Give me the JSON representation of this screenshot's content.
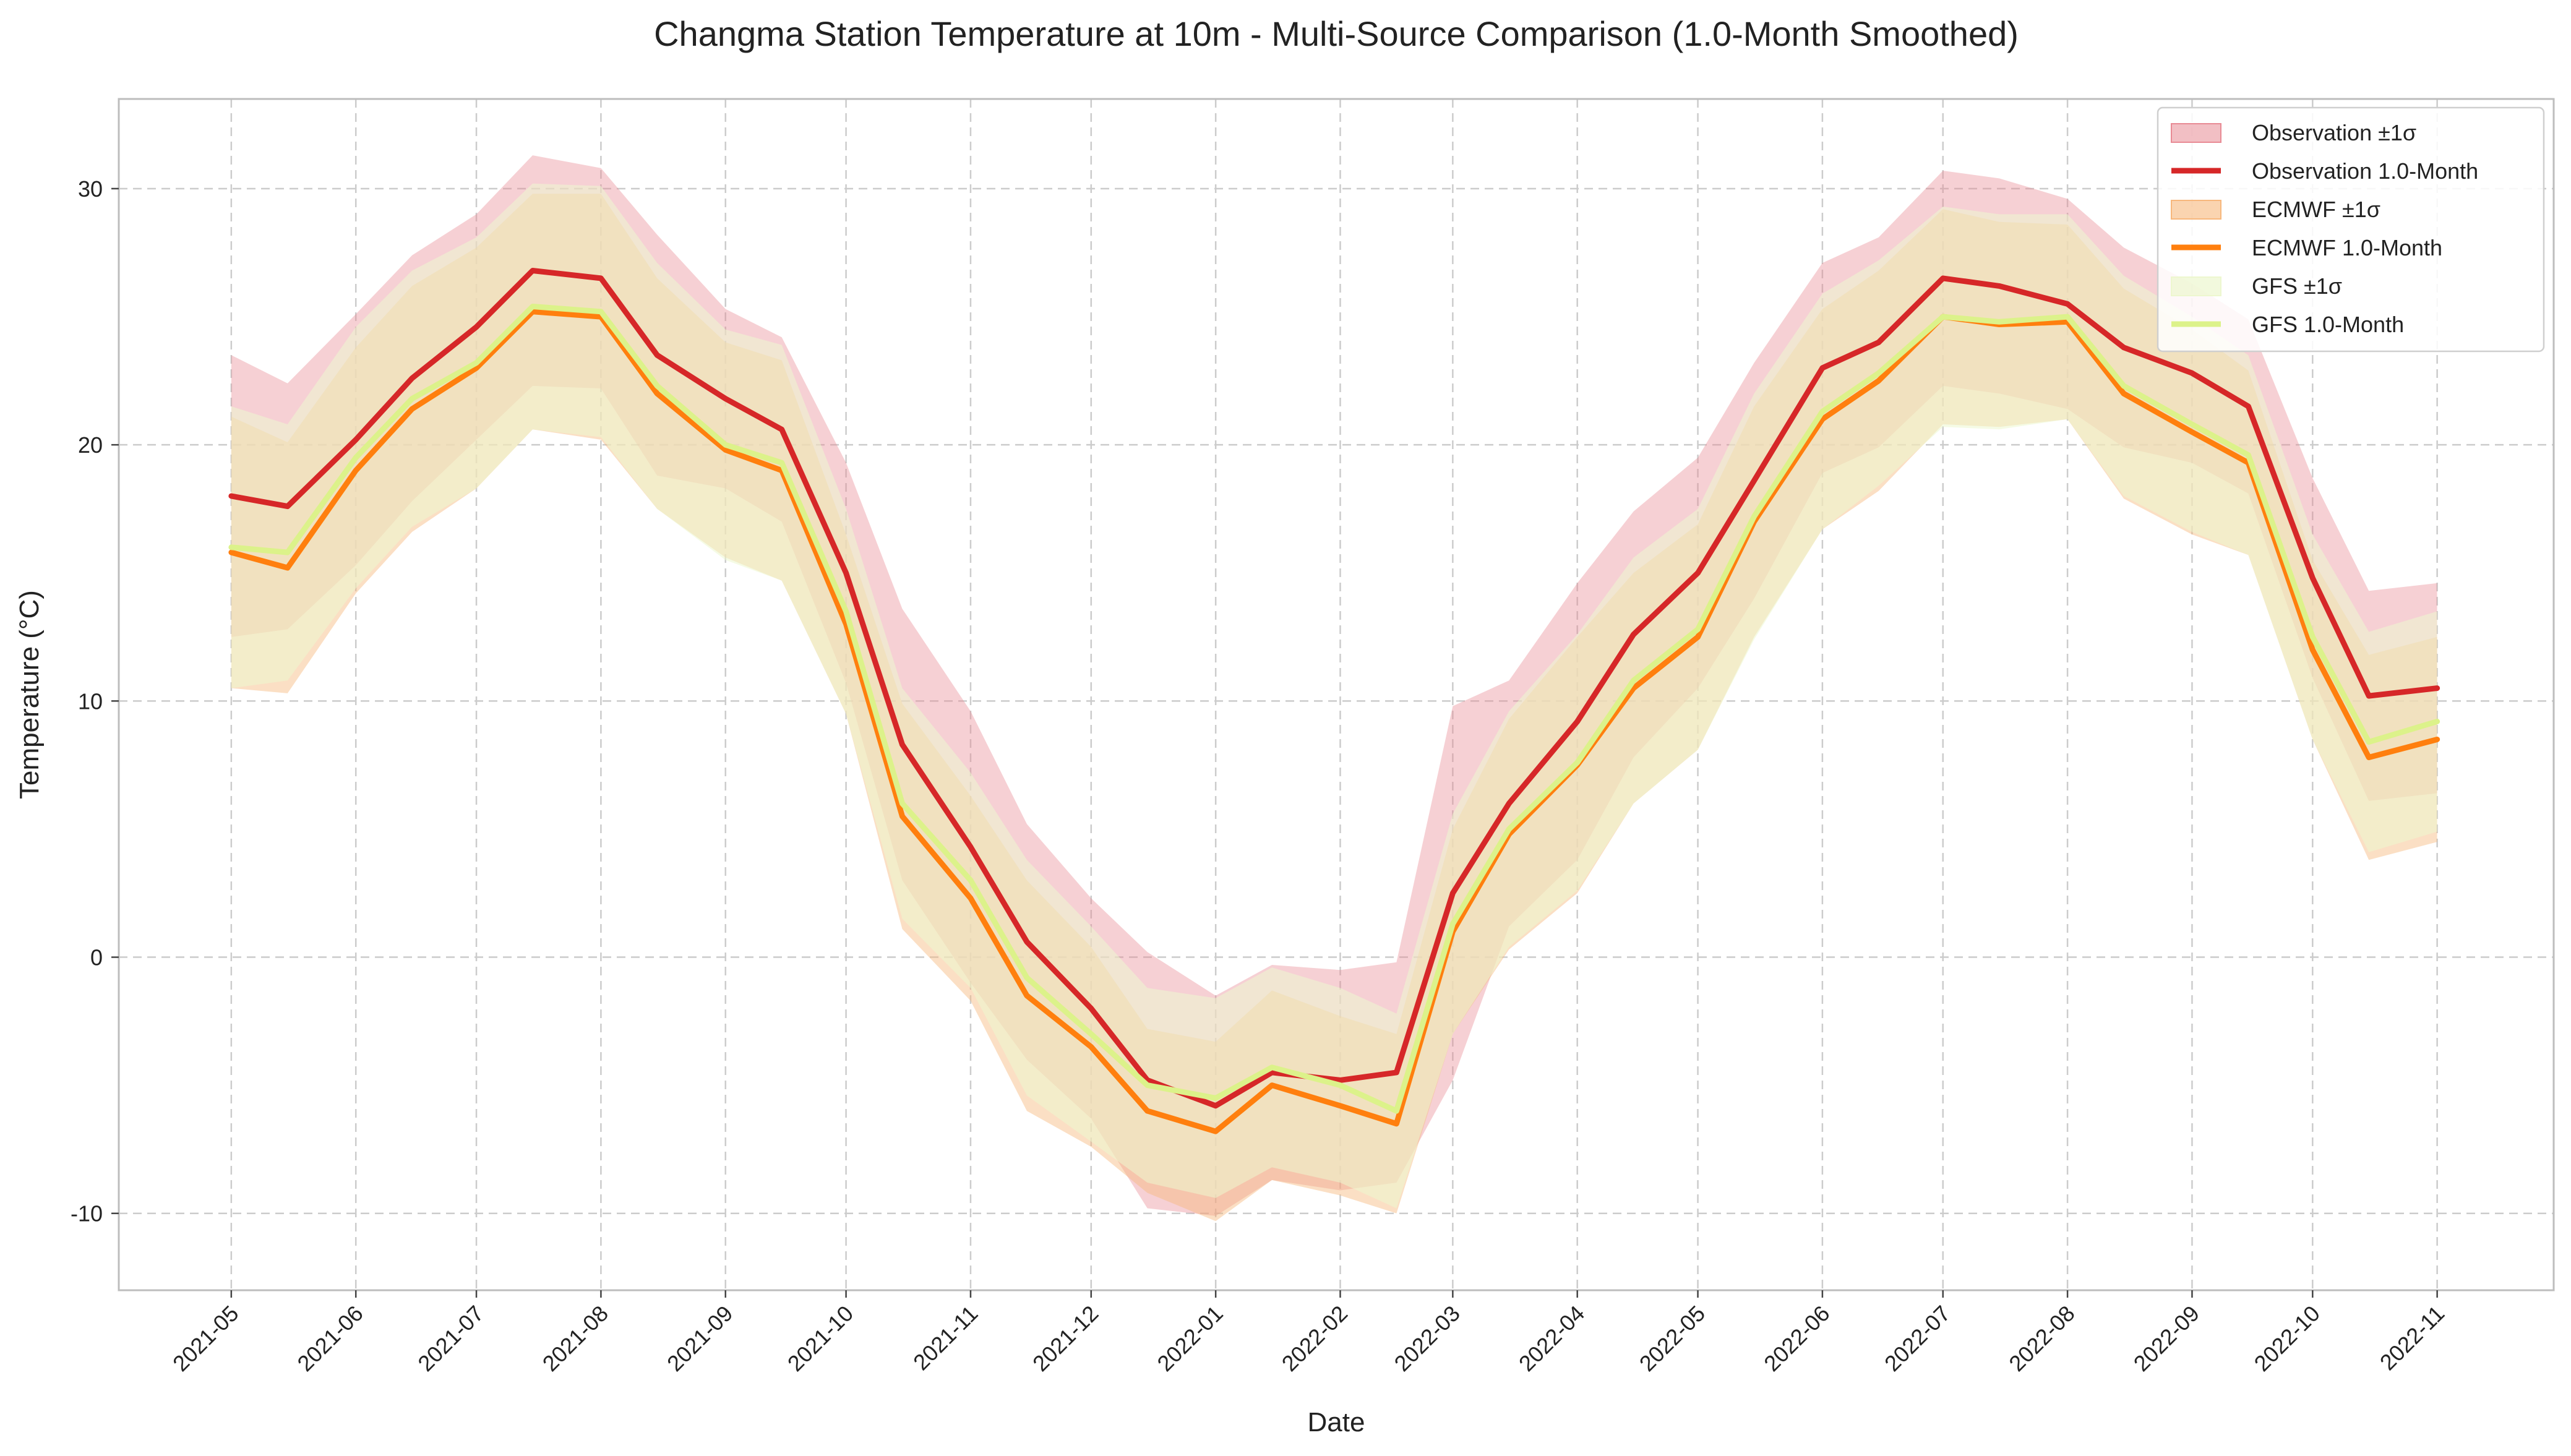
{
  "chart_data": {
    "type": "line",
    "title": "Changma Station Temperature at 10m - Multi-Source Comparison (1.0-Month Smoothed)",
    "xlabel": "Date",
    "ylabel": "Temperature (°C)",
    "x_ticks": [
      "2021-05",
      "2021-06",
      "2021-07",
      "2021-08",
      "2021-09",
      "2021-10",
      "2021-11",
      "2021-12",
      "2022-01",
      "2022-02",
      "2022-03",
      "2022-04",
      "2022-05",
      "2022-06",
      "2022-07",
      "2022-08",
      "2022-09",
      "2022-10",
      "2022-11"
    ],
    "y_ticks": [
      -10,
      0,
      10,
      20,
      30
    ],
    "xlim": [
      "2021-04-03",
      "2022-11-30"
    ],
    "ylim": [
      -13,
      33.5
    ],
    "grid": true,
    "legend_position": "top-right",
    "legend": [
      "Observation ±1σ",
      "Observation 1.0-Month",
      "ECMWF ±1σ",
      "ECMWF 1.0-Month",
      "GFS ±1σ",
      "GFS 1.0-Month"
    ],
    "series": [
      {
        "name": "Observation 1.0-Month",
        "band_name": "Observation ±1σ",
        "color": "#d62728",
        "band_color": "#e88a94",
        "x": [
          "2021-05-01",
          "2021-05-15",
          "2021-06-01",
          "2021-06-15",
          "2021-07-01",
          "2021-07-15",
          "2021-08-01",
          "2021-08-15",
          "2021-09-01",
          "2021-09-15",
          "2021-10-01",
          "2021-10-15",
          "2021-11-01",
          "2021-11-15",
          "2021-12-01",
          "2021-12-15",
          "2022-01-01",
          "2022-01-15",
          "2022-02-01",
          "2022-02-15",
          "2022-03-01",
          "2022-03-15",
          "2022-04-01",
          "2022-04-15",
          "2022-05-01",
          "2022-05-15",
          "2022-06-01",
          "2022-06-15",
          "2022-07-01",
          "2022-07-15",
          "2022-08-01",
          "2022-08-15",
          "2022-09-01",
          "2022-09-15",
          "2022-10-01",
          "2022-10-15",
          "2022-11-01"
        ],
        "values": [
          18.0,
          17.6,
          20.2,
          22.6,
          24.6,
          26.8,
          26.5,
          23.5,
          21.8,
          20.6,
          15.0,
          8.3,
          4.3,
          0.6,
          -2.0,
          -4.8,
          -5.8,
          -4.5,
          -4.8,
          -4.5,
          2.5,
          6.0,
          9.2,
          12.6,
          15.0,
          18.6,
          23.0,
          24.0,
          26.5,
          26.2,
          25.5,
          23.8,
          22.8,
          21.5,
          14.8,
          10.2,
          10.5
        ],
        "sigma": [
          5.5,
          4.8,
          4.9,
          4.8,
          4.4,
          4.5,
          4.3,
          4.7,
          3.5,
          3.6,
          4.3,
          5.3,
          5.3,
          4.6,
          4.3,
          5.0,
          4.3,
          4.2,
          4.3,
          4.3,
          7.3,
          4.8,
          5.4,
          4.8,
          4.5,
          4.6,
          4.1,
          4.1,
          4.2,
          4.2,
          4.1,
          3.9,
          3.5,
          3.4,
          3.9,
          4.1,
          4.1
        ]
      },
      {
        "name": "ECMWF 1.0-Month",
        "band_name": "ECMWF ±1σ",
        "color": "#ff7f0e",
        "band_color": "#f7b77c",
        "x": [
          "2021-05-01",
          "2021-05-15",
          "2021-06-01",
          "2021-06-15",
          "2021-07-01",
          "2021-07-15",
          "2021-08-01",
          "2021-08-15",
          "2021-09-01",
          "2021-09-15",
          "2021-10-01",
          "2021-10-15",
          "2021-11-01",
          "2021-11-15",
          "2021-12-01",
          "2021-12-15",
          "2022-01-01",
          "2022-01-15",
          "2022-02-01",
          "2022-02-15",
          "2022-03-01",
          "2022-03-15",
          "2022-04-01",
          "2022-04-15",
          "2022-05-01",
          "2022-05-15",
          "2022-06-01",
          "2022-06-15",
          "2022-07-01",
          "2022-07-15",
          "2022-08-01",
          "2022-08-15",
          "2022-09-01",
          "2022-09-15",
          "2022-10-01",
          "2022-10-15",
          "2022-11-01"
        ],
        "values": [
          15.8,
          15.2,
          19.0,
          21.4,
          23.0,
          25.2,
          25.0,
          22.0,
          19.8,
          19.0,
          13.0,
          5.5,
          2.3,
          -1.5,
          -3.5,
          -6.0,
          -6.8,
          -5.0,
          -5.8,
          -6.5,
          1.0,
          4.8,
          7.5,
          10.5,
          12.5,
          17.0,
          21.0,
          22.5,
          25.0,
          24.7,
          24.8,
          22.0,
          20.5,
          19.3,
          12.0,
          7.8,
          8.5
        ],
        "sigma": [
          5.3,
          4.9,
          4.8,
          4.8,
          4.7,
          4.6,
          4.8,
          4.5,
          4.2,
          4.3,
          3.5,
          4.4,
          4.0,
          4.5,
          3.9,
          3.2,
          3.5,
          3.7,
          3.5,
          3.5,
          4.0,
          4.5,
          5.0,
          4.5,
          4.4,
          4.5,
          4.3,
          4.3,
          4.2,
          4.0,
          3.8,
          4.1,
          4.0,
          3.6,
          3.5,
          4.0,
          4.0
        ]
      },
      {
        "name": "GFS 1.0-Month",
        "band_name": "GFS ±1σ",
        "color": "#dcf28a",
        "band_color": "#edf7cf",
        "x": [
          "2021-05-01",
          "2021-05-15",
          "2021-06-01",
          "2021-06-15",
          "2021-07-01",
          "2021-07-15",
          "2021-08-01",
          "2021-08-15",
          "2021-09-01",
          "2021-09-15",
          "2021-10-01",
          "2021-10-15",
          "2021-11-01",
          "2021-11-15",
          "2021-12-01",
          "2021-12-15",
          "2022-01-01",
          "2022-01-15",
          "2022-02-01",
          "2022-02-15",
          "2022-03-01",
          "2022-03-15",
          "2022-04-01",
          "2022-04-15",
          "2022-05-01",
          "2022-05-15",
          "2022-06-01",
          "2022-06-15",
          "2022-07-01",
          "2022-07-15",
          "2022-08-01",
          "2022-08-15",
          "2022-09-01",
          "2022-09-15",
          "2022-10-01",
          "2022-10-15",
          "2022-11-01"
        ],
        "values": [
          16.0,
          15.8,
          19.5,
          21.8,
          23.2,
          25.4,
          25.2,
          22.3,
          20.0,
          19.3,
          13.5,
          6.0,
          3.0,
          -0.8,
          -3.0,
          -5.0,
          -5.5,
          -4.3,
          -5.0,
          -6.0,
          1.3,
          5.0,
          7.6,
          10.8,
          12.8,
          17.2,
          21.3,
          22.8,
          25.0,
          24.8,
          25.0,
          22.3,
          20.8,
          19.6,
          12.5,
          8.4,
          9.2
        ],
        "sigma": [
          5.5,
          5.0,
          5.1,
          5.0,
          4.9,
          4.8,
          4.9,
          4.8,
          4.5,
          4.6,
          4.0,
          4.5,
          4.2,
          4.6,
          4.2,
          3.8,
          3.9,
          3.9,
          3.8,
          3.8,
          4.3,
          4.6,
          5.0,
          4.8,
          4.7,
          4.8,
          4.6,
          4.4,
          4.3,
          4.2,
          4.0,
          4.3,
          4.2,
          3.9,
          4.0,
          4.3,
          4.3
        ]
      }
    ]
  }
}
